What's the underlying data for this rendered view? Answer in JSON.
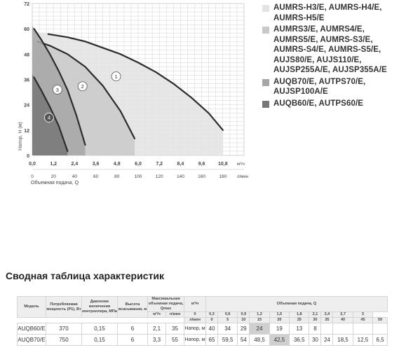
{
  "chart_data": {
    "type": "line",
    "ylabel": "Напор, Н (м)",
    "xlabel": "Объемная подача, Q",
    "x_unit_top": "м³/ч",
    "x_unit_bottom": "л/мин",
    "xlim": [
      0,
      12
    ],
    "ylim": [
      0,
      72
    ],
    "x_ticks_top": [
      "0,0",
      "1,2",
      "2,4",
      "3,6",
      "4,8",
      "6,0",
      "7,2",
      "8,4",
      "9,6",
      "10,8"
    ],
    "x_ticks_bottom": [
      "0",
      "20",
      "40",
      "60",
      "80",
      "100",
      "120",
      "140",
      "160",
      "180"
    ],
    "y_ticks": [
      "0",
      "12",
      "24",
      "36",
      "48",
      "60",
      "72"
    ],
    "grid": true,
    "series": [
      {
        "name": "1",
        "color": "#e3e3e3",
        "x": [
          0.9,
          2.0,
          3.0,
          4.0,
          5.0,
          6.0,
          7.0,
          8.0,
          9.0,
          10.0,
          10.8
        ],
        "y": [
          57.5,
          56,
          54,
          51,
          48,
          44,
          39.5,
          34,
          27.5,
          20,
          12
        ]
      },
      {
        "name": "2",
        "color": "#c9c9c9",
        "x": [
          0.3,
          1.0,
          2.0,
          3.0,
          4.0,
          5.0,
          5.8
        ],
        "y": [
          54,
          52,
          48,
          42,
          33,
          21,
          8
        ]
      },
      {
        "name": "3",
        "color": "#a6a6a6",
        "x": [
          0.1,
          0.5,
          1.0,
          1.5,
          2.0,
          2.5,
          3.0
        ],
        "y": [
          60,
          55,
          48,
          40,
          31,
          19,
          5
        ]
      },
      {
        "name": "4",
        "color": "#777777",
        "x": [
          0.1,
          0.5,
          1.0,
          1.5,
          2.0
        ],
        "y": [
          37,
          31,
          23,
          14,
          2
        ]
      }
    ]
  },
  "legend": [
    {
      "marker": "1",
      "text": "AUMRS-H3/E, AUMRS-H4/E, AUMRS-H5/E",
      "color": "#e3e3e3"
    },
    {
      "marker": "2",
      "text": "AUMRS3/E, AUMRS4/E, AUMRS5/E, AUMRS-S3/E, AUMRS-S4/E, AUMRS-S5/E, AUJS80/E, AUJS110/E, AUJSP255A/E, AUJSP355A/E",
      "color": "#c9c9c9"
    },
    {
      "marker": "3",
      "text": "AUQB70/E, AUTPS70/E, AUJSP100A/E",
      "color": "#a6a6a6"
    },
    {
      "marker": "4",
      "text": "AUQB60/E, AUTPS60/E",
      "color": "#777777"
    }
  ],
  "section_title": "Сводная таблица характеристик",
  "table": {
    "h_model": "Модель",
    "h_power": "Потребляемая мощность (P1), Вт",
    "h_pressure": "Давление включения контроллера, МПа",
    "h_suction": "Высота всасывания, м",
    "h_qmax": "Максимальная объемная подача, Qmax",
    "h_qmax_m3h": "м³/ч",
    "h_qmax_lmin": "л/мин",
    "h_flow": "Объемная подача, Q",
    "h_flow_m3h": "м³/ч",
    "h_flow_lmin": "л/мин",
    "head_label": "Напор, м",
    "flow_m3h": [
      "0",
      "0,3",
      "0,6",
      "0,9",
      "1,2",
      "1,5",
      "1,8",
      "2,1",
      "2,4",
      "2,7",
      "3"
    ],
    "flow_lmin": [
      "0",
      "5",
      "10",
      "15",
      "20",
      "25",
      "30",
      "35",
      "40",
      "45",
      "50"
    ],
    "rows": [
      {
        "model": "AUQB60/E",
        "power": "370",
        "pressure": "0,15",
        "suction": "6",
        "q_m3h": "2,1",
        "q_lmin": "35",
        "head": [
          "40",
          "34",
          "29",
          "24",
          "19",
          "13",
          "8",
          "",
          "",
          "",
          ""
        ],
        "hl": 3
      },
      {
        "model": "AUQB70/E",
        "power": "750",
        "pressure": "0,15",
        "suction": "6",
        "q_m3h": "3,3",
        "q_lmin": "55",
        "head": [
          "65",
          "59,5",
          "54",
          "48,5",
          "42,5",
          "36,5",
          "30",
          "24",
          "18,5",
          "12,5",
          "6,5"
        ],
        "hl": 4
      }
    ]
  }
}
